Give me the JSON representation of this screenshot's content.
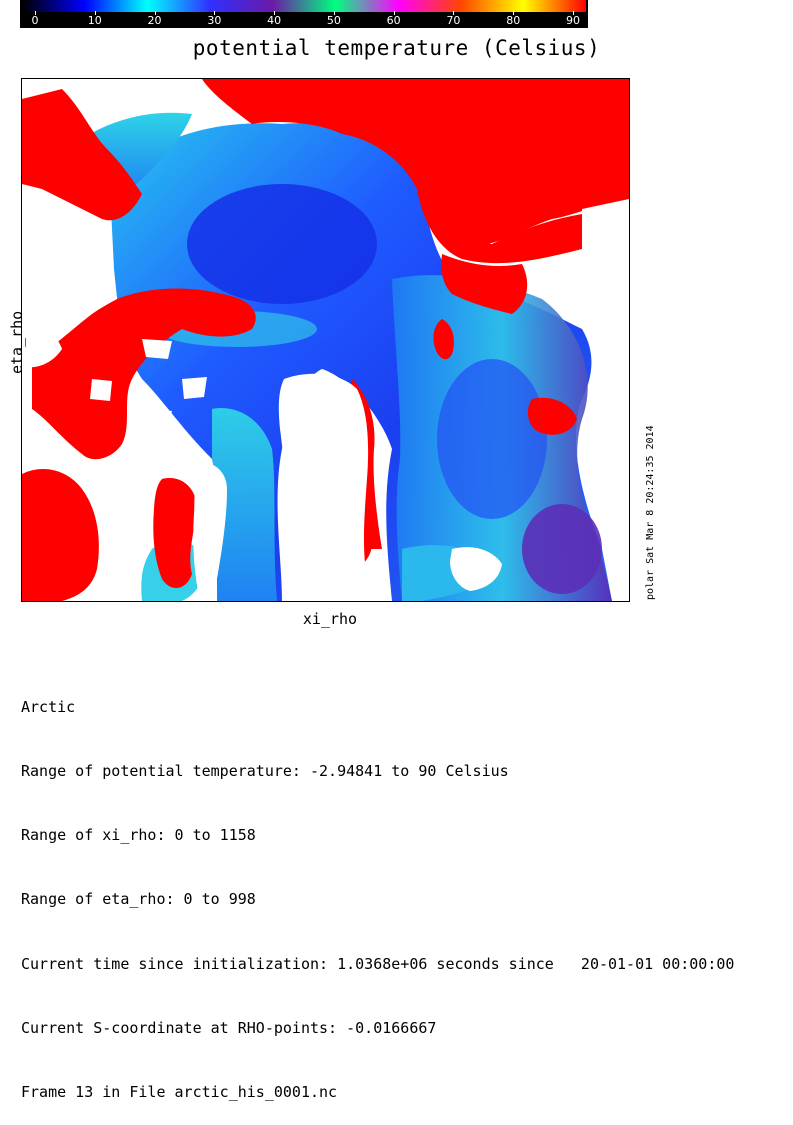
{
  "colorbar": {
    "colors": [
      "#000000",
      "#0000ff",
      "#00ffff",
      "#3030ff",
      "#6a1aa6",
      "#00ff7f",
      "#ff00ff",
      "#ff4500",
      "#ffff00",
      "#ff0000"
    ],
    "ticks": [
      "0",
      "10",
      "20",
      "30",
      "40",
      "50",
      "60",
      "70",
      "80",
      "90"
    ],
    "min": 0,
    "max": 90
  },
  "plot": {
    "title": "potential temperature (Celsius)",
    "xlabel": "xi_rho",
    "ylabel": "eta_rho",
    "stamp": "polar Sat Mar  8 20:24:35 2014",
    "land_color": "#ffffff",
    "high_color": "#ff0000"
  },
  "chart_data": {
    "type": "heatmap",
    "title": "potential temperature (Celsius)",
    "xlabel": "xi_rho",
    "ylabel": "eta_rho",
    "value_range": [
      -2.94841,
      90
    ],
    "xlim": [
      0,
      1158
    ],
    "ylim": [
      0,
      998
    ],
    "colorbar_ticks": [
      0,
      10,
      20,
      30,
      40,
      50,
      60,
      70,
      80,
      90
    ]
  },
  "info": {
    "lines": [
      "Arctic",
      "Range of potential temperature: -2.94841 to 90 Celsius",
      "Range of xi_rho: 0 to 1158",
      "Range of eta_rho: 0 to 998",
      "Current time since initialization: 1.0368e+06 seconds since   20-01-01 00:00:00",
      "Current S-coordinate at RHO-points: -0.0166667",
      "Frame 13 in File arctic_his_0001.nc"
    ]
  }
}
